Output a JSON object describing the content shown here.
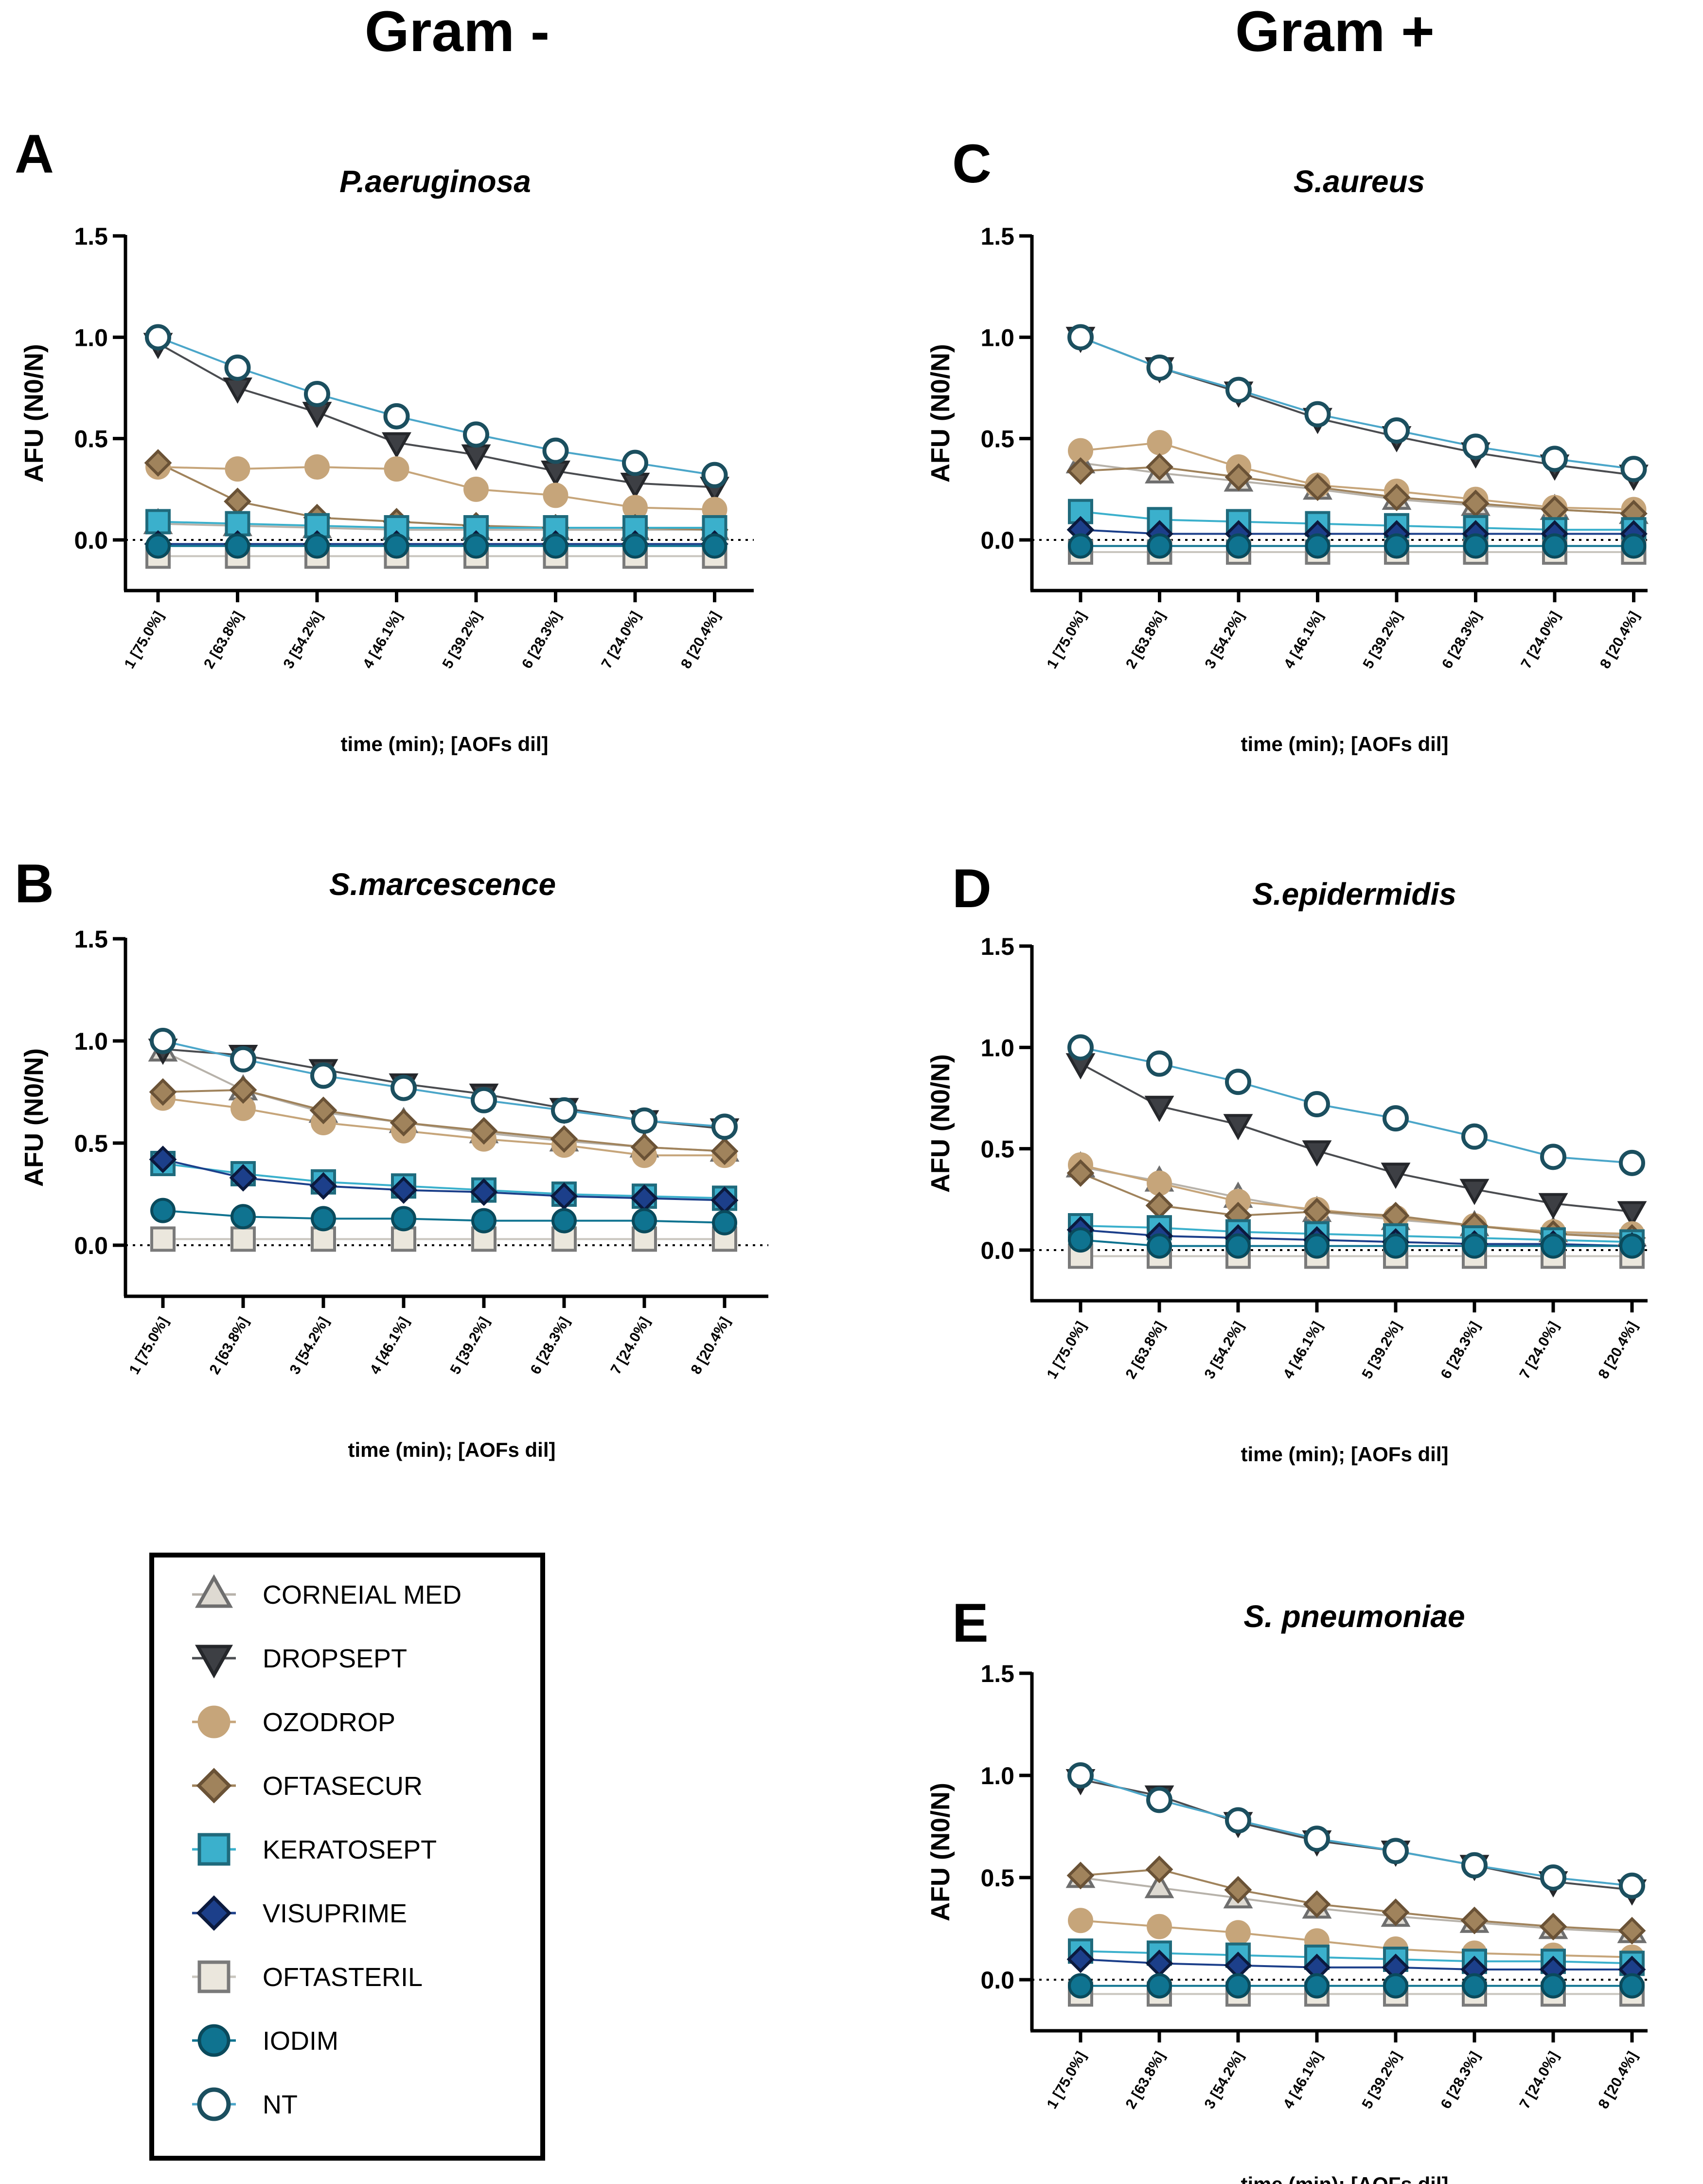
{
  "headers": {
    "left": "Gram -",
    "right": "Gram +"
  },
  "axis": {
    "ylabel": "AFU (N0/N)",
    "xlabel": "time (min); [AOFs dil]",
    "yticks": [
      "0.0",
      "0.5",
      "1.0",
      "1.5"
    ],
    "ytick_values": [
      0,
      0.5,
      1.0,
      1.5
    ],
    "ylim": [
      -0.25,
      1.5
    ],
    "xticks": [
      "1 [75.0%]",
      "2 [63.8%]",
      "3 [54.2%]",
      "4 [46.1%]",
      "5 [39.2%]",
      "6 [28.3%]",
      "7 [24.0%]",
      "8 [20.4%]"
    ],
    "reference_line_y": 0
  },
  "legend": {
    "items": [
      {
        "label": "CORNEIAL MED",
        "marker": "triangle-up",
        "fill": "#dedad2",
        "stroke": "#6e6e6e",
        "line": "#b7b2aa"
      },
      {
        "label": "DROPSEPT",
        "marker": "triangle-down",
        "fill": "#3d3f44",
        "stroke": "#25272b",
        "line": "#4a4c50"
      },
      {
        "label": "OZODROP",
        "marker": "circle",
        "fill": "#c6a57a",
        "stroke": "#c6a57a",
        "line": "#c6a57a"
      },
      {
        "label": "OFTASECUR",
        "marker": "diamond",
        "fill": "#a0835c",
        "stroke": "#6a5236",
        "line": "#a0835c"
      },
      {
        "label": "KERATOSEPT",
        "marker": "square",
        "fill": "#3bb0cc",
        "stroke": "#1f6a7c",
        "line": "#3bb0cc"
      },
      {
        "label": "VISUPRIME",
        "marker": "diamond",
        "fill": "#1c3f8a",
        "stroke": "#0b1a3e",
        "line": "#1c3f8a"
      },
      {
        "label": "OFTASTERIL",
        "marker": "square",
        "fill": "#ebe7dd",
        "stroke": "#7a7a7a",
        "line": "#c9c6bf"
      },
      {
        "label": "IODIM",
        "marker": "circle",
        "fill": "#0f7390",
        "stroke": "#0a4a5c",
        "line": "#0f7390"
      },
      {
        "label": "NT",
        "marker": "circle-open",
        "fill": "#ffffff",
        "stroke": "#1b4f5f",
        "line": "#4ba6c9"
      }
    ]
  },
  "chart_data": [
    {
      "type": "line",
      "panel": "A",
      "title": "P.aeruginosa",
      "xlabel": "time (min); [AOFs dil]",
      "ylabel": "AFU (N0/N)",
      "ylim": [
        -0.25,
        1.5
      ],
      "categories": [
        "1 [75.0%]",
        "2 [63.8%]",
        "3 [54.2%]",
        "4 [46.1%]",
        "5 [39.2%]",
        "6 [28.3%]",
        "7 [24.0%]",
        "8 [20.4%]"
      ],
      "series": [
        {
          "name": "CORNEIAL MED",
          "values": [
            0.08,
            0.07,
            0.06,
            0.05,
            0.05,
            0.05,
            0.05,
            0.05
          ]
        },
        {
          "name": "DROPSEPT",
          "values": [
            0.97,
            0.75,
            0.63,
            0.48,
            0.42,
            0.34,
            0.28,
            0.26
          ]
        },
        {
          "name": "OZODROP",
          "values": [
            0.36,
            0.35,
            0.36,
            0.35,
            0.25,
            0.22,
            0.16,
            0.15
          ]
        },
        {
          "name": "OFTASECUR",
          "values": [
            0.38,
            0.19,
            0.11,
            0.09,
            0.07,
            0.06,
            0.06,
            0.05
          ]
        },
        {
          "name": "KERATOSEPT",
          "values": [
            0.09,
            0.08,
            0.07,
            0.06,
            0.06,
            0.06,
            0.06,
            0.06
          ]
        },
        {
          "name": "VISUPRIME",
          "values": [
            -0.02,
            -0.02,
            -0.02,
            -0.02,
            -0.02,
            -0.02,
            -0.02,
            -0.02
          ]
        },
        {
          "name": "OFTASTERIL",
          "values": [
            -0.08,
            -0.08,
            -0.08,
            -0.08,
            -0.08,
            -0.08,
            -0.08,
            -0.08
          ]
        },
        {
          "name": "IODIM",
          "values": [
            -0.03,
            -0.03,
            -0.03,
            -0.03,
            -0.03,
            -0.03,
            -0.03,
            -0.03
          ]
        },
        {
          "name": "NT",
          "values": [
            1.0,
            0.85,
            0.72,
            0.61,
            0.52,
            0.44,
            0.38,
            0.32
          ]
        }
      ]
    },
    {
      "type": "line",
      "panel": "B",
      "title": "S.marcescence",
      "xlabel": "time (min); [AOFs dil]",
      "ylabel": "AFU (N0/N)",
      "ylim": [
        -0.25,
        1.5
      ],
      "categories": [
        "1 [75.0%]",
        "2 [63.8%]",
        "3 [54.2%]",
        "4 [46.1%]",
        "5 [39.2%]",
        "6 [28.3%]",
        "7 [24.0%]",
        "8 [20.4%]"
      ],
      "series": [
        {
          "name": "CORNEIAL MED",
          "values": [
            0.95,
            0.76,
            0.65,
            0.6,
            0.55,
            0.51,
            0.48,
            0.46
          ]
        },
        {
          "name": "DROPSEPT",
          "values": [
            0.96,
            0.93,
            0.86,
            0.79,
            0.74,
            0.67,
            0.61,
            0.57
          ]
        },
        {
          "name": "OZODROP",
          "values": [
            0.72,
            0.67,
            0.6,
            0.56,
            0.52,
            0.49,
            0.44,
            0.44
          ]
        },
        {
          "name": "OFTASECUR",
          "values": [
            0.75,
            0.76,
            0.66,
            0.6,
            0.56,
            0.52,
            0.48,
            0.46
          ]
        },
        {
          "name": "KERATOSEPT",
          "values": [
            0.4,
            0.35,
            0.31,
            0.29,
            0.27,
            0.25,
            0.24,
            0.23
          ]
        },
        {
          "name": "VISUPRIME",
          "values": [
            0.42,
            0.33,
            0.29,
            0.27,
            0.26,
            0.24,
            0.23,
            0.22
          ]
        },
        {
          "name": "OFTASTERIL",
          "values": [
            0.03,
            0.03,
            0.03,
            0.03,
            0.03,
            0.03,
            0.03,
            0.03
          ]
        },
        {
          "name": "IODIM",
          "values": [
            0.17,
            0.14,
            0.13,
            0.13,
            0.12,
            0.12,
            0.12,
            0.11
          ]
        },
        {
          "name": "NT",
          "values": [
            1.0,
            0.91,
            0.83,
            0.77,
            0.71,
            0.66,
            0.61,
            0.58
          ]
        }
      ]
    },
    {
      "type": "line",
      "panel": "C",
      "title": "S.aureus",
      "xlabel": "time (min); [AOFs dil]",
      "ylabel": "AFU (N0/N)",
      "ylim": [
        -0.25,
        1.5
      ],
      "categories": [
        "1 [75.0%]",
        "2 [63.8%]",
        "3 [54.2%]",
        "4 [46.1%]",
        "5 [39.2%]",
        "6 [28.3%]",
        "7 [24.0%]",
        "8 [20.4%]"
      ],
      "series": [
        {
          "name": "CORNEIAL MED",
          "values": [
            0.38,
            0.33,
            0.29,
            0.25,
            0.2,
            0.17,
            0.15,
            0.13
          ]
        },
        {
          "name": "DROPSEPT",
          "values": [
            1.0,
            0.85,
            0.73,
            0.6,
            0.51,
            0.43,
            0.37,
            0.32
          ]
        },
        {
          "name": "OZODROP",
          "values": [
            0.44,
            0.48,
            0.36,
            0.27,
            0.24,
            0.2,
            0.16,
            0.15
          ]
        },
        {
          "name": "OFTASECUR",
          "values": [
            0.34,
            0.36,
            0.31,
            0.26,
            0.21,
            0.18,
            0.15,
            0.13
          ]
        },
        {
          "name": "KERATOSEPT",
          "values": [
            0.14,
            0.1,
            0.09,
            0.08,
            0.07,
            0.06,
            0.05,
            0.05
          ]
        },
        {
          "name": "VISUPRIME",
          "values": [
            0.05,
            0.03,
            0.03,
            0.03,
            0.03,
            0.03,
            0.03,
            0.03
          ]
        },
        {
          "name": "OFTASTERIL",
          "values": [
            -0.06,
            -0.06,
            -0.06,
            -0.06,
            -0.06,
            -0.06,
            -0.06,
            -0.06
          ]
        },
        {
          "name": "IODIM",
          "values": [
            -0.03,
            -0.03,
            -0.03,
            -0.03,
            -0.03,
            -0.03,
            -0.03,
            -0.03
          ]
        },
        {
          "name": "NT",
          "values": [
            1.0,
            0.85,
            0.74,
            0.62,
            0.54,
            0.46,
            0.4,
            0.35
          ]
        }
      ]
    },
    {
      "type": "line",
      "panel": "D",
      "title": "S.epidermidis",
      "xlabel": "time (min); [AOFs dil]",
      "ylabel": "AFU (N0/N)",
      "ylim": [
        -0.25,
        1.5
      ],
      "categories": [
        "1 [75.0%]",
        "2 [63.8%]",
        "3 [54.2%]",
        "4 [46.1%]",
        "5 [39.2%]",
        "6 [28.3%]",
        "7 [24.0%]",
        "8 [20.4%]"
      ],
      "series": [
        {
          "name": "CORNEIAL MED",
          "values": [
            0.41,
            0.34,
            0.26,
            0.19,
            0.15,
            0.12,
            0.09,
            0.07
          ]
        },
        {
          "name": "DROPSEPT",
          "values": [
            0.92,
            0.71,
            0.62,
            0.49,
            0.38,
            0.3,
            0.23,
            0.19
          ]
        },
        {
          "name": "OZODROP",
          "values": [
            0.42,
            0.33,
            0.24,
            0.2,
            0.16,
            0.12,
            0.09,
            0.08
          ]
        },
        {
          "name": "OFTASECUR",
          "values": [
            0.38,
            0.22,
            0.17,
            0.19,
            0.17,
            0.12,
            0.08,
            0.06
          ]
        },
        {
          "name": "KERATOSEPT",
          "values": [
            0.12,
            0.11,
            0.09,
            0.08,
            0.07,
            0.06,
            0.05,
            0.04
          ]
        },
        {
          "name": "VISUPRIME",
          "values": [
            0.1,
            0.07,
            0.06,
            0.05,
            0.04,
            0.03,
            0.03,
            0.02
          ]
        },
        {
          "name": "OFTASTERIL",
          "values": [
            -0.03,
            -0.03,
            -0.03,
            -0.03,
            -0.03,
            -0.03,
            -0.03,
            -0.03
          ]
        },
        {
          "name": "IODIM",
          "values": [
            0.05,
            0.02,
            0.02,
            0.02,
            0.02,
            0.02,
            0.02,
            0.02
          ]
        },
        {
          "name": "NT",
          "values": [
            1.0,
            0.92,
            0.83,
            0.72,
            0.65,
            0.56,
            0.46,
            0.43
          ]
        }
      ]
    },
    {
      "type": "line",
      "panel": "E",
      "title": "S. pneumoniae",
      "xlabel": "time (min); [AOFs dil]",
      "ylabel": "AFU (N0/N)",
      "ylim": [
        -0.25,
        1.5
      ],
      "categories": [
        "1 [75.0%]",
        "2 [63.8%]",
        "3 [54.2%]",
        "4 [46.1%]",
        "5 [39.2%]",
        "6 [28.3%]",
        "7 [24.0%]",
        "8 [20.4%]"
      ],
      "series": [
        {
          "name": "CORNEIAL MED",
          "values": [
            0.5,
            0.45,
            0.4,
            0.35,
            0.31,
            0.28,
            0.25,
            0.23
          ]
        },
        {
          "name": "DROPSEPT",
          "values": [
            0.98,
            0.9,
            0.77,
            0.68,
            0.63,
            0.56,
            0.48,
            0.44
          ]
        },
        {
          "name": "OZODROP",
          "values": [
            0.29,
            0.26,
            0.23,
            0.19,
            0.15,
            0.13,
            0.12,
            0.11
          ]
        },
        {
          "name": "OFTASECUR",
          "values": [
            0.51,
            0.54,
            0.44,
            0.37,
            0.33,
            0.29,
            0.26,
            0.24
          ]
        },
        {
          "name": "KERATOSEPT",
          "values": [
            0.14,
            0.13,
            0.12,
            0.11,
            0.1,
            0.09,
            0.09,
            0.08
          ]
        },
        {
          "name": "VISUPRIME",
          "values": [
            0.1,
            0.08,
            0.07,
            0.06,
            0.06,
            0.05,
            0.05,
            0.05
          ]
        },
        {
          "name": "OFTASTERIL",
          "values": [
            -0.07,
            -0.07,
            -0.07,
            -0.07,
            -0.07,
            -0.07,
            -0.07,
            -0.07
          ]
        },
        {
          "name": "IODIM",
          "values": [
            -0.03,
            -0.03,
            -0.03,
            -0.03,
            -0.03,
            -0.03,
            -0.03,
            -0.03
          ]
        },
        {
          "name": "NT",
          "values": [
            1.0,
            0.88,
            0.78,
            0.69,
            0.63,
            0.56,
            0.5,
            0.46
          ]
        }
      ]
    }
  ]
}
